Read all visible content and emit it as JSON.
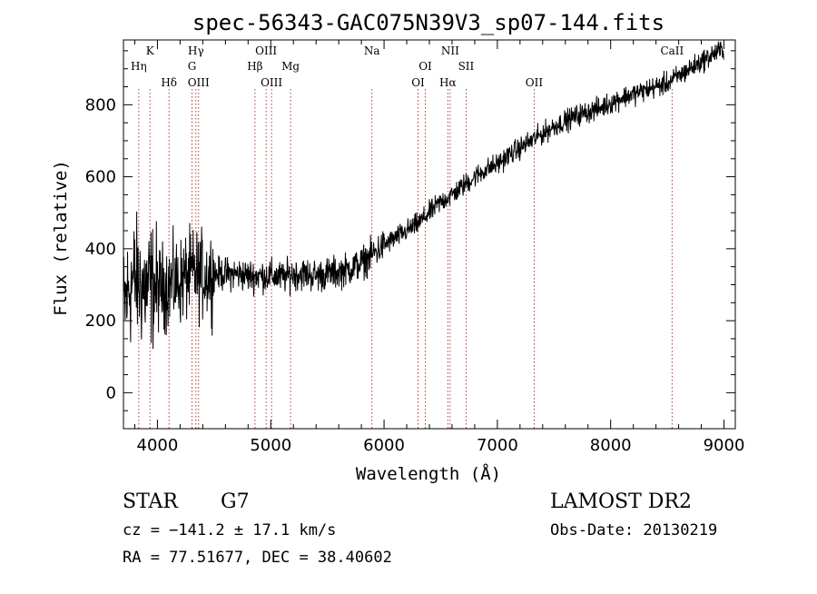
{
  "chart_data": {
    "type": "line",
    "title": "spec-56343-GAC075N39V3_sp07-144.fits",
    "xlabel": "Wavelength (Å)",
    "ylabel": "Flux (relative)",
    "xlim": [
      3700,
      9100
    ],
    "ylim": [
      -100,
      980
    ],
    "x_ticks": [
      4000,
      5000,
      6000,
      7000,
      8000,
      9000
    ],
    "y_ticks": [
      0,
      200,
      400,
      600,
      800
    ],
    "grid": false,
    "line_color": "#000000",
    "marker_color": "#b22222",
    "spectrum_anchors": [
      [
        3700,
        230
      ],
      [
        3750,
        290
      ],
      [
        3800,
        320
      ],
      [
        3850,
        300
      ],
      [
        3900,
        290
      ],
      [
        3950,
        300
      ],
      [
        4000,
        290
      ],
      [
        4100,
        300
      ],
      [
        4200,
        310
      ],
      [
        4300,
        330
      ],
      [
        4400,
        325
      ],
      [
        4500,
        330
      ],
      [
        4600,
        330
      ],
      [
        4700,
        330
      ],
      [
        4800,
        325
      ],
      [
        4900,
        325
      ],
      [
        5000,
        325
      ],
      [
        5100,
        320
      ],
      [
        5200,
        330
      ],
      [
        5300,
        330
      ],
      [
        5400,
        325
      ],
      [
        5500,
        330
      ],
      [
        5600,
        335
      ],
      [
        5700,
        345
      ],
      [
        5800,
        360
      ],
      [
        5900,
        385
      ],
      [
        6000,
        410
      ],
      [
        6100,
        430
      ],
      [
        6200,
        450
      ],
      [
        6300,
        470
      ],
      [
        6400,
        500
      ],
      [
        6500,
        530
      ],
      [
        6600,
        550
      ],
      [
        6700,
        575
      ],
      [
        6800,
        600
      ],
      [
        6900,
        620
      ],
      [
        7000,
        635
      ],
      [
        7100,
        660
      ],
      [
        7200,
        680
      ],
      [
        7300,
        700
      ],
      [
        7400,
        720
      ],
      [
        7500,
        740
      ],
      [
        7600,
        755
      ],
      [
        7700,
        770
      ],
      [
        7800,
        780
      ],
      [
        7900,
        790
      ],
      [
        8000,
        805
      ],
      [
        8100,
        820
      ],
      [
        8200,
        830
      ],
      [
        8300,
        840
      ],
      [
        8400,
        850
      ],
      [
        8500,
        860
      ],
      [
        8600,
        880
      ],
      [
        8700,
        900
      ],
      [
        8800,
        920
      ],
      [
        8900,
        940
      ],
      [
        9000,
        955
      ]
    ],
    "spectral_lines": [
      {
        "name": "Hη",
        "wavelength": 3835,
        "row": 1
      },
      {
        "name": "K",
        "wavelength": 3934,
        "row": 0
      },
      {
        "name": "Hδ",
        "wavelength": 4102,
        "row": 2
      },
      {
        "name": "Hγ",
        "wavelength": 4340,
        "row": 0
      },
      {
        "name": "G",
        "wavelength": 4305,
        "row": 1
      },
      {
        "name": "OIII",
        "wavelength": 4363,
        "row": 2
      },
      {
        "name": "OIII",
        "wavelength": 4959,
        "row": 0
      },
      {
        "name": "Hβ",
        "wavelength": 4861,
        "row": 1
      },
      {
        "name": "OIII",
        "wavelength": 5007,
        "row": 2
      },
      {
        "name": "Mg",
        "wavelength": 5175,
        "row": 1
      },
      {
        "name": "Na",
        "wavelength": 5893,
        "row": 0
      },
      {
        "name": "OI",
        "wavelength": 6364,
        "row": 1
      },
      {
        "name": "OI",
        "wavelength": 6300,
        "row": 2
      },
      {
        "name": "NII",
        "wavelength": 6583,
        "row": 0
      },
      {
        "name": "Hα",
        "wavelength": 6563,
        "row": 2
      },
      {
        "name": "SII",
        "wavelength": 6724,
        "row": 1
      },
      {
        "name": "OII",
        "wavelength": 7325,
        "row": 2
      },
      {
        "name": "CaII",
        "wavelength": 8542,
        "row": 0
      }
    ]
  },
  "info": {
    "object_class": "STAR",
    "subclass": "G7",
    "survey": "LAMOST DR2",
    "cz": "cz = −141.2 ± 17.1 km/s",
    "obs_date": "Obs-Date: 20130219",
    "coords": "RA =  77.51677, DEC =  38.40602"
  }
}
